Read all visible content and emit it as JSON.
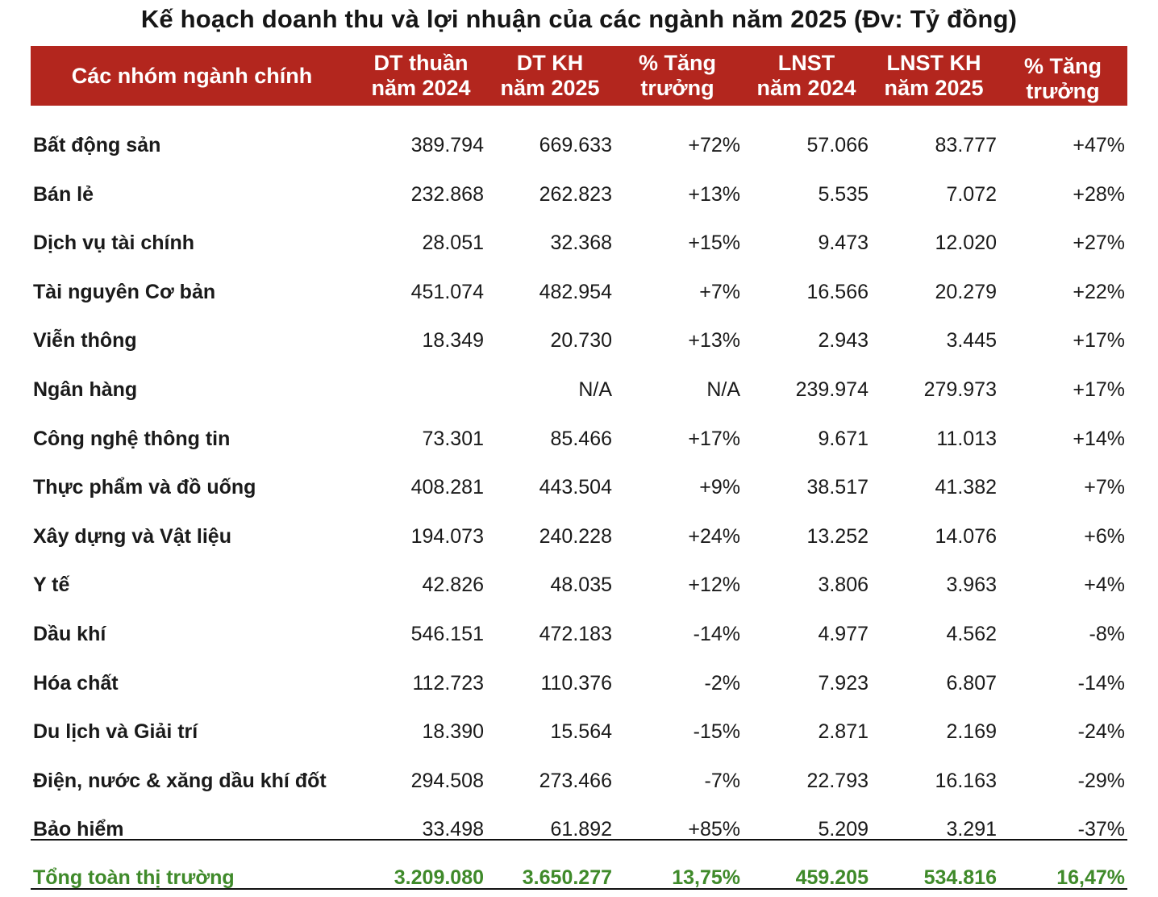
{
  "title": "Kế hoạch doanh thu và lợi nhuận của các ngành năm 2025 (Đv: Tỷ đồng)",
  "table": {
    "headers": [
      {
        "line1": "Các nhóm ngành chính",
        "line2": ""
      },
      {
        "line1": "DT thuần",
        "line2": "năm 2024"
      },
      {
        "line1": "DT KH",
        "line2": "năm 2025"
      },
      {
        "line1": "% Tăng",
        "line2": "trưởng"
      },
      {
        "line1": "LNST",
        "line2": "năm 2024"
      },
      {
        "line1": "LNST KH",
        "line2": "năm 2025"
      },
      {
        "line1": "% Tăng",
        "line2": "trưởng"
      }
    ],
    "rows": [
      [
        "Bất động sản",
        "389.794",
        "669.633",
        "+72%",
        "57.066",
        "83.777",
        "+47%"
      ],
      [
        "Bán lẻ",
        "232.868",
        "262.823",
        "+13%",
        "5.535",
        "7.072",
        "+28%"
      ],
      [
        "Dịch vụ tài chính",
        "28.051",
        "32.368",
        "+15%",
        "9.473",
        "12.020",
        "+27%"
      ],
      [
        "Tài nguyên Cơ bản",
        "451.074",
        "482.954",
        "+7%",
        "16.566",
        "20.279",
        "+22%"
      ],
      [
        "Viễn thông",
        "18.349",
        "20.730",
        "+13%",
        "2.943",
        "3.445",
        "+17%"
      ],
      [
        "Ngân hàng",
        "",
        "N/A",
        "N/A",
        "239.974",
        "279.973",
        "+17%"
      ],
      [
        "Công nghệ thông tin",
        "73.301",
        "85.466",
        "+17%",
        "9.671",
        "11.013",
        "+14%"
      ],
      [
        "Thực phẩm và đồ uống",
        "408.281",
        "443.504",
        "+9%",
        "38.517",
        "41.382",
        "+7%"
      ],
      [
        "Xây dựng và Vật liệu",
        "194.073",
        "240.228",
        "+24%",
        "13.252",
        "14.076",
        "+6%"
      ],
      [
        "Y tế",
        "42.826",
        "48.035",
        "+12%",
        "3.806",
        "3.963",
        "+4%"
      ],
      [
        "Dầu khí",
        "546.151",
        "472.183",
        "-14%",
        "4.977",
        "4.562",
        "-8%"
      ],
      [
        "Hóa chất",
        "112.723",
        "110.376",
        "-2%",
        "7.923",
        "6.807",
        "-14%"
      ],
      [
        "Du lịch và Giải trí",
        "18.390",
        "15.564",
        "-15%",
        "2.871",
        "2.169",
        "-24%"
      ],
      [
        "Điện, nước & xăng dầu khí đốt",
        "294.508",
        "273.466",
        "-7%",
        "22.793",
        "16.163",
        "-29%"
      ],
      [
        "Bảo hiểm",
        "33.498",
        "61.892",
        "+85%",
        "5.209",
        "3.291",
        "-37%"
      ]
    ],
    "total": [
      "Tổng toàn thị trường",
      "3.209.080",
      "3.650.277",
      "13,75%",
      "459.205",
      "534.816",
      "16,47%"
    ]
  },
  "colors": {
    "header_bg": "#b3261e",
    "header_text": "#ffffff",
    "total_text": "#3f8a2a"
  }
}
